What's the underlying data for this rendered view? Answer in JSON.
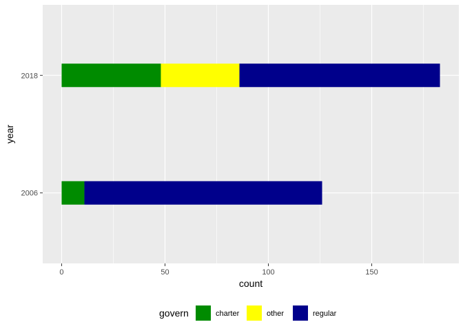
{
  "chart_data": {
    "type": "bar",
    "orientation": "horizontal",
    "stacked": true,
    "categories": [
      "2006",
      "2018"
    ],
    "series": [
      {
        "name": "charter",
        "values": [
          11,
          48
        ],
        "color": "#008B00"
      },
      {
        "name": "other",
        "values": [
          0,
          38
        ],
        "color": "#FFFF00"
      },
      {
        "name": "regular",
        "values": [
          115,
          97
        ],
        "color": "#00008B"
      }
    ],
    "xlabel": "count",
    "ylabel": "year",
    "xlim": [
      -9.15,
      192.15
    ],
    "x_ticks": [
      0,
      50,
      100,
      150
    ],
    "x_tick_labels": [
      "0",
      "50",
      "100",
      "150"
    ],
    "x_minor_ticks": [
      25,
      75,
      125,
      175
    ],
    "grid": true,
    "legend": {
      "title": "govern",
      "placement": "bottom",
      "entries": [
        "charter",
        "other",
        "regular"
      ]
    },
    "panel_background": "#EBEBEB",
    "grid_color": "#FFFFFF"
  }
}
